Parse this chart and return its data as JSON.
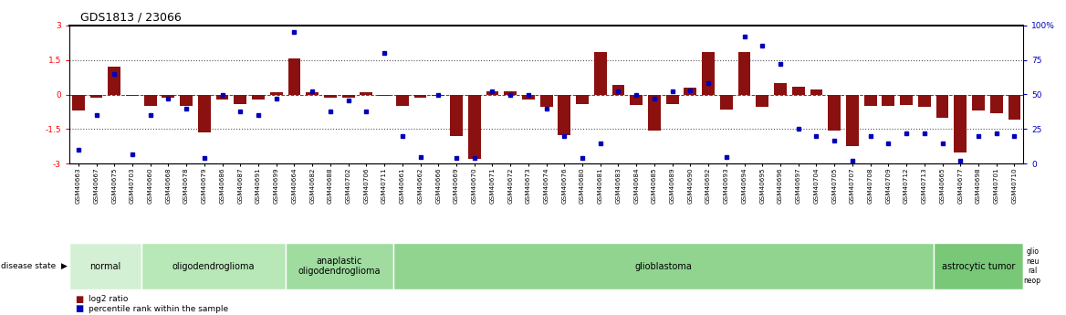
{
  "title": "GDS1813 / 23066",
  "samples": [
    "GSM40663",
    "GSM40667",
    "GSM40675",
    "GSM40703",
    "GSM40660",
    "GSM40668",
    "GSM40678",
    "GSM40679",
    "GSM40686",
    "GSM40687",
    "GSM40691",
    "GSM40699",
    "GSM40664",
    "GSM40682",
    "GSM40688",
    "GSM40702",
    "GSM40706",
    "GSM40711",
    "GSM40661",
    "GSM40662",
    "GSM40666",
    "GSM40669",
    "GSM40670",
    "GSM40671",
    "GSM40672",
    "GSM40673",
    "GSM40674",
    "GSM40676",
    "GSM40680",
    "GSM40681",
    "GSM40683",
    "GSM40684",
    "GSM40685",
    "GSM40689",
    "GSM40690",
    "GSM40692",
    "GSM40693",
    "GSM40694",
    "GSM40695",
    "GSM40696",
    "GSM40697",
    "GSM40704",
    "GSM40705",
    "GSM40707",
    "GSM40708",
    "GSM40709",
    "GSM40712",
    "GSM40713",
    "GSM40665",
    "GSM40677",
    "GSM40698",
    "GSM40701",
    "GSM40710"
  ],
  "log2_ratio": [
    -0.7,
    -0.15,
    1.2,
    -0.05,
    -0.5,
    -0.15,
    -0.5,
    -1.65,
    -0.2,
    -0.4,
    -0.2,
    0.1,
    1.55,
    0.1,
    -0.15,
    -0.15,
    0.1,
    -0.05,
    -0.5,
    -0.15,
    -0.05,
    -1.8,
    -2.8,
    0.15,
    0.15,
    -0.2,
    -0.55,
    -1.75,
    -0.4,
    1.82,
    0.4,
    -0.45,
    -1.55,
    -0.4,
    0.3,
    1.82,
    -0.65,
    1.82,
    -0.55,
    0.5,
    0.35,
    0.2,
    -1.55,
    -2.25,
    -0.5,
    -0.5,
    -0.45,
    -0.55,
    -1.0,
    -2.5,
    -0.7,
    -0.8,
    -1.1
  ],
  "percentile": [
    10,
    35,
    65,
    7,
    35,
    47,
    40,
    4,
    50,
    38,
    35,
    47,
    95,
    52,
    38,
    46,
    38,
    80,
    20,
    5,
    50,
    4,
    4,
    52,
    50,
    50,
    40,
    20,
    4,
    15,
    52,
    50,
    47,
    52,
    53,
    58,
    5,
    92,
    85,
    72,
    25,
    20,
    17,
    2,
    20,
    15,
    22,
    22,
    15,
    2,
    20,
    22,
    20
  ],
  "disease_groups": [
    {
      "label": "normal",
      "start": 0,
      "end": 4,
      "color": "#d4f0d4"
    },
    {
      "label": "oligodendroglioma",
      "start": 4,
      "end": 12,
      "color": "#b8e8b8"
    },
    {
      "label": "anaplastic\noligodendroglioma",
      "start": 12,
      "end": 18,
      "color": "#a0dca0"
    },
    {
      "label": "glioblastoma",
      "start": 18,
      "end": 48,
      "color": "#90d490"
    },
    {
      "label": "astrocytic tumor",
      "start": 48,
      "end": 53,
      "color": "#78c878"
    },
    {
      "label": "glio\nneu\nral\nneop",
      "start": 53,
      "end": 54,
      "color": "#60b860"
    }
  ],
  "bar_color": "#8B1010",
  "dot_color": "#0000BB",
  "ylim_left": [
    -3,
    3
  ],
  "ylim_right": [
    0,
    100
  ],
  "yticks_left": [
    -3,
    -1.5,
    0,
    1.5,
    3
  ],
  "yticks_right": [
    0,
    25,
    50,
    75,
    100
  ],
  "bg_color": "#ffffff"
}
